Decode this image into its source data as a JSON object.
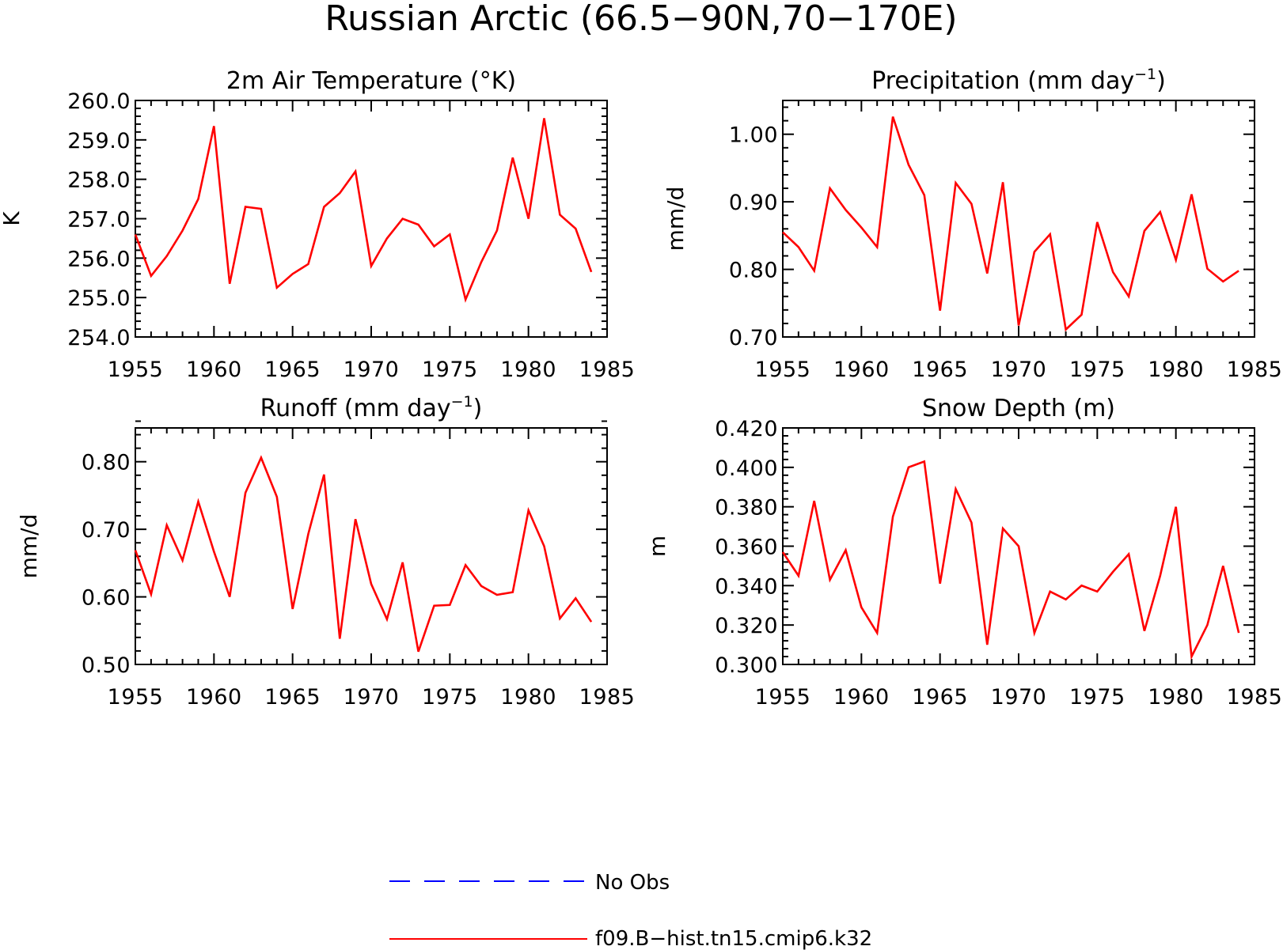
{
  "title": "Russian Arctic (66.5−90N,70−170E)",
  "colors": {
    "model": "#ff0000",
    "obs": "#0000ff",
    "axis": "#000000"
  },
  "legend": [
    {
      "label": "No Obs",
      "style": "dashed",
      "color": "#0000ff"
    },
    {
      "label": "f09.B−hist.tn15.cmip6.k32",
      "style": "solid",
      "color": "#ff0000"
    }
  ],
  "chart_data": [
    {
      "type": "line",
      "title": "2m Air Temperature (°K)",
      "ylabel": "K",
      "xlim": [
        1955,
        1985
      ],
      "ylim": [
        254.0,
        260.0
      ],
      "xticks": [
        1955,
        1960,
        1965,
        1970,
        1975,
        1980,
        1985
      ],
      "yticks": [
        "254.0",
        "255.0",
        "256.0",
        "257.0",
        "258.0",
        "259.0",
        "260.0"
      ],
      "x": [
        1955,
        1956,
        1957,
        1958,
        1959,
        1960,
        1961,
        1962,
        1963,
        1964,
        1965,
        1966,
        1967,
        1968,
        1969,
        1970,
        1971,
        1972,
        1973,
        1974,
        1975,
        1976,
        1977,
        1978,
        1979,
        1980,
        1981,
        1982,
        1983,
        1984
      ],
      "series": [
        {
          "name": "f09.B−hist.tn15.cmip6.k32",
          "values": [
            256.6,
            255.55,
            256.05,
            256.7,
            257.5,
            259.35,
            255.35,
            257.3,
            257.25,
            255.25,
            255.6,
            255.85,
            257.3,
            257.65,
            258.2,
            255.8,
            256.5,
            257.0,
            256.85,
            256.3,
            256.6,
            254.95,
            255.9,
            256.7,
            258.55,
            257.0,
            259.55,
            257.1,
            256.75,
            255.65
          ]
        }
      ]
    },
    {
      "type": "line",
      "title": "Precipitation (mm day",
      "title_sup": "−1",
      "title_tail": ")",
      "ylabel": "mm/d",
      "xlim": [
        1955,
        1985
      ],
      "ylim": [
        0.7,
        1.05
      ],
      "xticks": [
        1955,
        1960,
        1965,
        1970,
        1975,
        1980,
        1985
      ],
      "yticks": [
        "0.70",
        "0.80",
        "0.90",
        "1.00"
      ],
      "x": [
        1955,
        1956,
        1957,
        1958,
        1959,
        1960,
        1961,
        1962,
        1963,
        1964,
        1965,
        1966,
        1967,
        1968,
        1969,
        1970,
        1971,
        1972,
        1973,
        1974,
        1975,
        1976,
        1977,
        1978,
        1979,
        1980,
        1981,
        1982,
        1983,
        1984
      ],
      "series": [
        {
          "name": "f09.B−hist.tn15.cmip6.k32",
          "values": [
            0.855,
            0.833,
            0.798,
            0.92,
            0.888,
            0.862,
            0.833,
            1.026,
            0.955,
            0.91,
            0.739,
            0.928,
            0.897,
            0.794,
            0.929,
            0.717,
            0.826,
            0.852,
            0.711,
            0.733,
            0.87,
            0.796,
            0.76,
            0.857,
            0.885,
            0.814,
            0.911,
            0.801,
            0.782,
            0.798
          ]
        }
      ]
    },
    {
      "type": "line",
      "title": "Runoff (mm day",
      "title_sup": "−1",
      "title_tail": ")",
      "ylabel": "mm/d",
      "xlim": [
        1955,
        1985
      ],
      "ylim": [
        0.5,
        0.85
      ],
      "xticks": [
        1955,
        1960,
        1965,
        1970,
        1975,
        1980,
        1985
      ],
      "yticks": [
        "0.50",
        "0.60",
        "0.70",
        "0.80"
      ],
      "x": [
        1955,
        1956,
        1957,
        1958,
        1959,
        1960,
        1961,
        1962,
        1963,
        1964,
        1965,
        1966,
        1967,
        1968,
        1969,
        1970,
        1971,
        1972,
        1973,
        1974,
        1975,
        1976,
        1977,
        1978,
        1979,
        1980,
        1981,
        1982,
        1983,
        1984
      ],
      "series": [
        {
          "name": "f09.B−hist.tn15.cmip6.k32",
          "values": [
            0.669,
            0.604,
            0.706,
            0.654,
            0.741,
            0.667,
            0.6,
            0.754,
            0.806,
            0.748,
            0.582,
            0.693,
            0.781,
            0.538,
            0.715,
            0.619,
            0.567,
            0.651,
            0.519,
            0.587,
            0.588,
            0.647,
            0.616,
            0.603,
            0.607,
            0.728,
            0.675,
            0.568,
            0.598,
            0.563
          ]
        }
      ]
    },
    {
      "type": "line",
      "title": "Snow Depth (m)",
      "ylabel": "m",
      "xlim": [
        1955,
        1985
      ],
      "ylim": [
        0.3,
        0.42
      ],
      "xticks": [
        1955,
        1960,
        1965,
        1970,
        1975,
        1980,
        1985
      ],
      "yticks": [
        "0.300",
        "0.320",
        "0.340",
        "0.360",
        "0.380",
        "0.400",
        "0.420"
      ],
      "x": [
        1955,
        1956,
        1957,
        1958,
        1959,
        1960,
        1961,
        1962,
        1963,
        1964,
        1965,
        1966,
        1967,
        1968,
        1969,
        1970,
        1971,
        1972,
        1973,
        1974,
        1975,
        1976,
        1977,
        1978,
        1979,
        1980,
        1981,
        1982,
        1983,
        1984
      ],
      "series": [
        {
          "name": "f09.B−hist.tn15.cmip6.k32",
          "values": [
            0.357,
            0.345,
            0.383,
            0.343,
            0.358,
            0.329,
            0.316,
            0.375,
            0.4,
            0.403,
            0.341,
            0.389,
            0.372,
            0.31,
            0.369,
            0.36,
            0.316,
            0.337,
            0.333,
            0.34,
            0.337,
            0.347,
            0.356,
            0.317,
            0.345,
            0.38,
            0.304,
            0.32,
            0.35,
            0.316
          ]
        }
      ]
    }
  ]
}
